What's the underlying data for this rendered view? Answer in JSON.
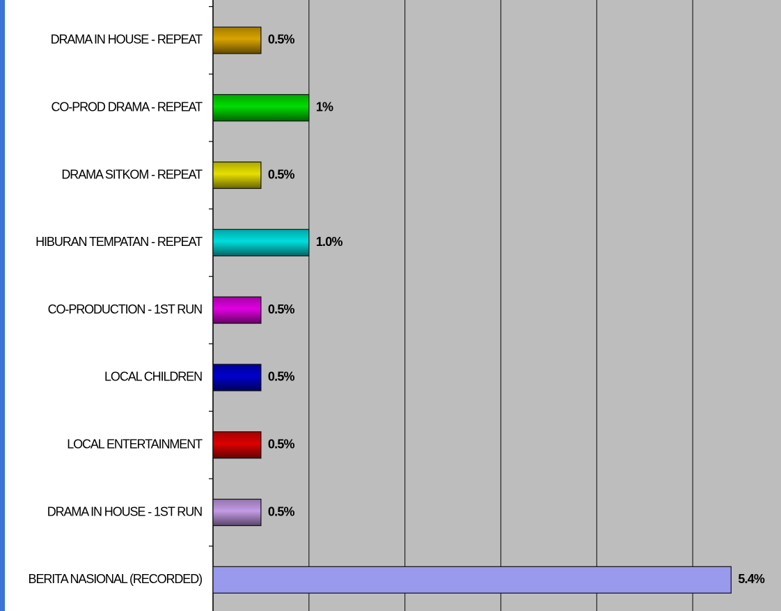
{
  "chart_data": {
    "type": "hbar",
    "categories": [
      "DRAMA IN HOUSE - REPEAT",
      "CO-PROD DRAMA - REPEAT",
      "DRAMA SITKOM - REPEAT",
      "HIBURAN TEMPATAN - REPEAT",
      "CO-PRODUCTION - 1ST RUN",
      "LOCAL CHILDREN",
      "LOCAL ENTERTAINMENT",
      "DRAMA IN HOUSE - 1ST RUN",
      "BERITA NASIONAL (RECORDED)"
    ],
    "values": [
      0.5,
      1,
      0.5,
      1.0,
      0.5,
      0.5,
      0.5,
      0.5,
      5.4
    ],
    "value_labels": [
      "0.5%",
      "1%",
      "0.5%",
      "1.0%",
      "0.5%",
      "0.5%",
      "0.5%",
      "0.5%",
      "5.4%"
    ],
    "colors": [
      "#d9a400",
      "#00dd00",
      "#e6e000",
      "#00dede",
      "#e000e0",
      "#0000cc",
      "#dd0000",
      "#c49be6",
      "#9999ee"
    ],
    "xlim": [
      0,
      5.92
    ],
    "xticks": [
      0,
      1,
      2,
      3,
      4,
      5
    ],
    "grid": true
  }
}
